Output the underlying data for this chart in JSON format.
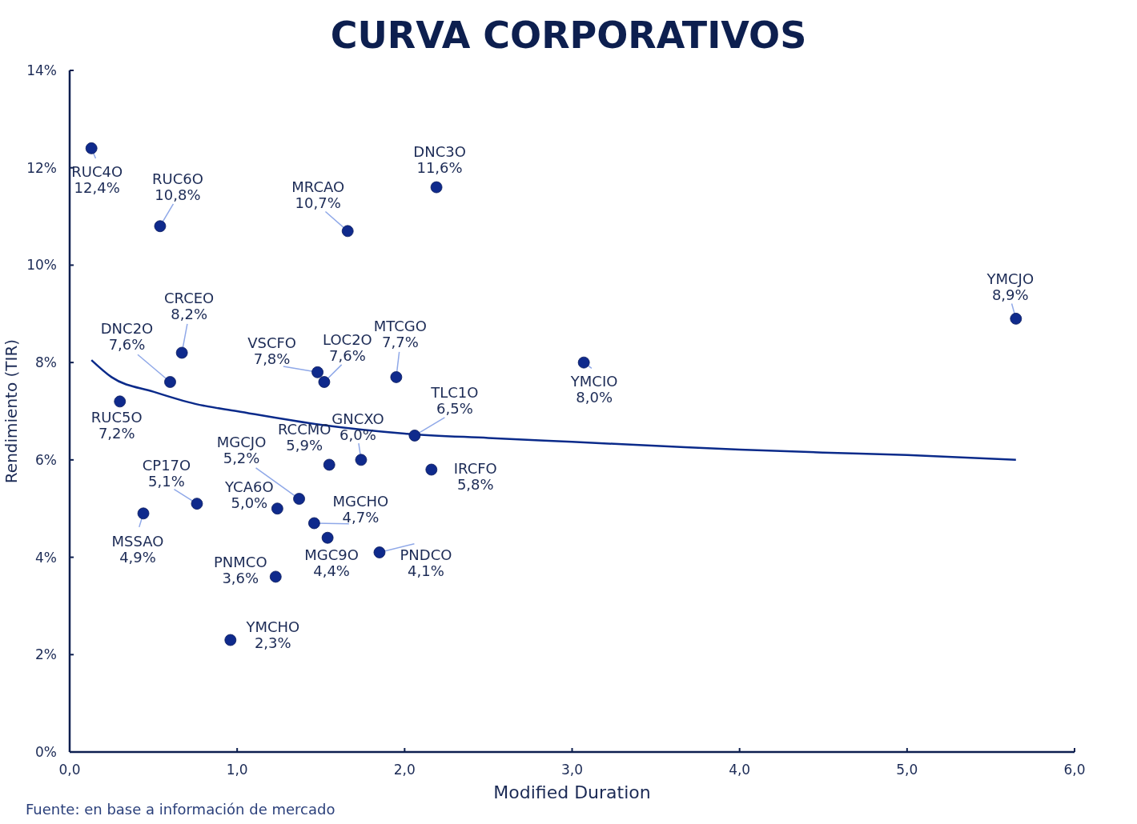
{
  "chart_data": {
    "type": "scatter",
    "title": "CURVA CORPORATIVOS",
    "xlabel": "Modified Duration",
    "ylabel": "Rendimiento (TIR)",
    "xlim": [
      0,
      6
    ],
    "ylim": [
      0,
      14
    ],
    "xticks": [
      {
        "value": 0,
        "label": "0,0"
      },
      {
        "value": 1,
        "label": "1,0"
      },
      {
        "value": 2,
        "label": "2,0"
      },
      {
        "value": 3,
        "label": "3,0"
      },
      {
        "value": 4,
        "label": "4,0"
      },
      {
        "value": 5,
        "label": "5,0"
      },
      {
        "value": 6,
        "label": "6,0"
      }
    ],
    "yticks": [
      {
        "value": 0,
        "label": "0%"
      },
      {
        "value": 2,
        "label": "2%"
      },
      {
        "value": 4,
        "label": "4%"
      },
      {
        "value": 6,
        "label": "6%"
      },
      {
        "value": 8,
        "label": "8%"
      },
      {
        "value": 10,
        "label": "10%"
      },
      {
        "value": 12,
        "label": "12%"
      },
      {
        "value": 14,
        "label": "14%"
      }
    ],
    "grid": false,
    "series": [
      {
        "marker": "circle",
        "color": "#0f2a8c",
        "x": [
          0.13,
          0.54,
          1.66,
          2.19,
          5.65,
          0.67,
          0.6,
          1.48,
          1.52,
          1.95,
          3.07,
          0.3,
          2.06,
          1.74,
          1.55,
          2.16,
          1.37,
          0.76,
          1.24,
          1.46,
          0.44,
          1.54,
          1.85,
          1.23,
          0.96
        ],
        "values": [
          12.4,
          10.8,
          10.7,
          11.6,
          8.9,
          8.2,
          7.6,
          7.8,
          7.6,
          7.7,
          8.0,
          7.2,
          6.5,
          6.0,
          5.9,
          5.8,
          5.2,
          5.1,
          5.0,
          4.7,
          4.9,
          4.4,
          4.1,
          3.6,
          2.3
        ],
        "value_labels": [
          "12,4%",
          "10,8%",
          "10,7%",
          "11,6%",
          "8,9%",
          "8,2%",
          "7,6%",
          "7,8%",
          "7,6%",
          "7,7%",
          "8,0%",
          "7,2%",
          "6,5%",
          "6,0%",
          "5,9%",
          "5,8%",
          "5,2%",
          "5,1%",
          "5,0%",
          "4,7%",
          "4,9%",
          "4,4%",
          "4,1%",
          "3,6%",
          "2,3%"
        ]
      },
      {
        "type": "line",
        "color": "#0a2a8a",
        "x": [
          0.13,
          0.25,
          0.5,
          0.75,
          1.0,
          1.5,
          2.0,
          2.5,
          3.0,
          3.5,
          4.0,
          4.5,
          5.0,
          5.65
        ],
        "values": [
          8.05,
          7.7,
          7.4,
          7.15,
          7.0,
          6.72,
          6.54,
          6.45,
          6.37,
          6.29,
          6.21,
          6.15,
          6.1,
          6.0
        ]
      }
    ],
    "annotations": [
      {
        "text": "RUC4O",
        "x": 0.13,
        "y": 12.4
      },
      {
        "text": "RUC6O",
        "x": 0.54,
        "y": 10.8
      },
      {
        "text": "MRCAO",
        "x": 1.66,
        "y": 10.7
      },
      {
        "text": "DNC3O",
        "x": 2.19,
        "y": 11.6
      },
      {
        "text": "YMCJO",
        "x": 5.65,
        "y": 8.9
      },
      {
        "text": "CRCEO",
        "x": 0.67,
        "y": 8.2
      },
      {
        "text": "DNC2O",
        "x": 0.6,
        "y": 7.6
      },
      {
        "text": "VSCFO",
        "x": 1.48,
        "y": 7.8
      },
      {
        "text": "LOC2O",
        "x": 1.52,
        "y": 7.6
      },
      {
        "text": "MTCGO",
        "x": 1.95,
        "y": 7.7
      },
      {
        "text": "YMCIO",
        "x": 3.07,
        "y": 8.0
      },
      {
        "text": "RUC5O",
        "x": 0.3,
        "y": 7.2
      },
      {
        "text": "TLC1O",
        "x": 2.06,
        "y": 6.5
      },
      {
        "text": "GNCXO",
        "x": 1.74,
        "y": 6.0
      },
      {
        "text": "RCCMO",
        "x": 1.55,
        "y": 5.9
      },
      {
        "text": "IRCFO",
        "x": 2.16,
        "y": 5.8
      },
      {
        "text": "MGCJO",
        "x": 1.37,
        "y": 5.2
      },
      {
        "text": "CP17O",
        "x": 0.76,
        "y": 5.1
      },
      {
        "text": "YCA6O",
        "x": 1.24,
        "y": 5.0
      },
      {
        "text": "MGCHO",
        "x": 1.46,
        "y": 4.7
      },
      {
        "text": "MSSAO",
        "x": 0.44,
        "y": 4.9
      },
      {
        "text": "MGC9O",
        "x": 1.54,
        "y": 4.4
      },
      {
        "text": "PNDCO",
        "x": 1.85,
        "y": 4.1
      },
      {
        "text": "PNMCO",
        "x": 1.23,
        "y": 3.6
      },
      {
        "text": "YMCHO",
        "x": 0.96,
        "y": 2.3
      },
      "Fuente: en base a información de mercado"
    ]
  }
}
